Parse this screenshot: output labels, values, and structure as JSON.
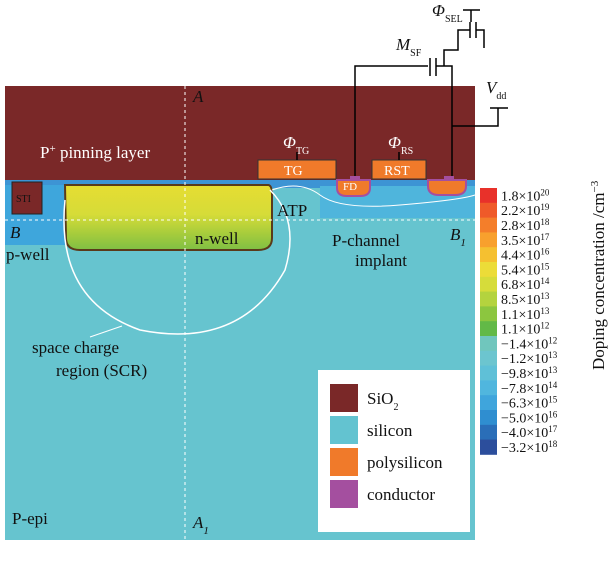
{
  "device": {
    "cut_a": {
      "text": "A"
    },
    "cut_a1": {
      "text": "A",
      "subscript": "1"
    },
    "cut_b": {
      "text": "B"
    },
    "cut_b1": {
      "text": "B",
      "subscript": "1"
    },
    "pinning_layer": {
      "text": "P",
      "superscript": "+",
      "rest": " pinning layer"
    },
    "sti": "STI",
    "atp": "ATP",
    "n_well": "n-well",
    "p_well": "p-well",
    "p_channel": [
      "P-channel",
      "implant"
    ],
    "scr": [
      "space charge",
      "region (SCR)"
    ],
    "p_epi": "P-epi",
    "tg": "TG",
    "rst": "RST",
    "fd": "FD"
  },
  "signals": {
    "phi_tg": {
      "symbol": "Φ",
      "subscript": "TG"
    },
    "phi_rs": {
      "symbol": "Φ",
      "subscript": "RS"
    },
    "phi_sel": {
      "symbol": "Φ",
      "subscript": "SEL"
    },
    "m_sf": {
      "symbol": "M",
      "subscript": "SF"
    },
    "v_dd": {
      "symbol": "V",
      "subscript": "dd"
    }
  },
  "legend": [
    {
      "label": "SiO",
      "subscript": "2"
    },
    {
      "label": "silicon"
    },
    {
      "label": "polysilicon"
    },
    {
      "label": "conductor"
    }
  ],
  "colorbar": {
    "title": "Doping concentration /cm",
    "title_superscript": "−3",
    "labels": [
      {
        "mantissa": "1.8×10",
        "exponent": "20"
      },
      {
        "mantissa": "2.2×10",
        "exponent": "19"
      },
      {
        "mantissa": "2.8×10",
        "exponent": "18"
      },
      {
        "mantissa": "3.5×10",
        "exponent": "17"
      },
      {
        "mantissa": "4.4×10",
        "exponent": "16"
      },
      {
        "mantissa": "5.4×10",
        "exponent": "15"
      },
      {
        "mantissa": "6.8×10",
        "exponent": "14"
      },
      {
        "mantissa": "8.5×10",
        "exponent": "13"
      },
      {
        "mantissa": "1.1×10",
        "exponent": "13"
      },
      {
        "mantissa": "1.1×10",
        "exponent": "12"
      },
      {
        "mantissa": "−1.4×10",
        "exponent": "12"
      },
      {
        "mantissa": "−1.2×10",
        "exponent": "13"
      },
      {
        "mantissa": "−9.8×10",
        "exponent": "13"
      },
      {
        "mantissa": "−7.8×10",
        "exponent": "14"
      },
      {
        "mantissa": "−6.3×10",
        "exponent": "15"
      },
      {
        "mantissa": "−5.0×10",
        "exponent": "16"
      },
      {
        "mantissa": "−4.0×10",
        "exponent": "17"
      },
      {
        "mantissa": "−3.2×10",
        "exponent": "18"
      }
    ]
  }
}
